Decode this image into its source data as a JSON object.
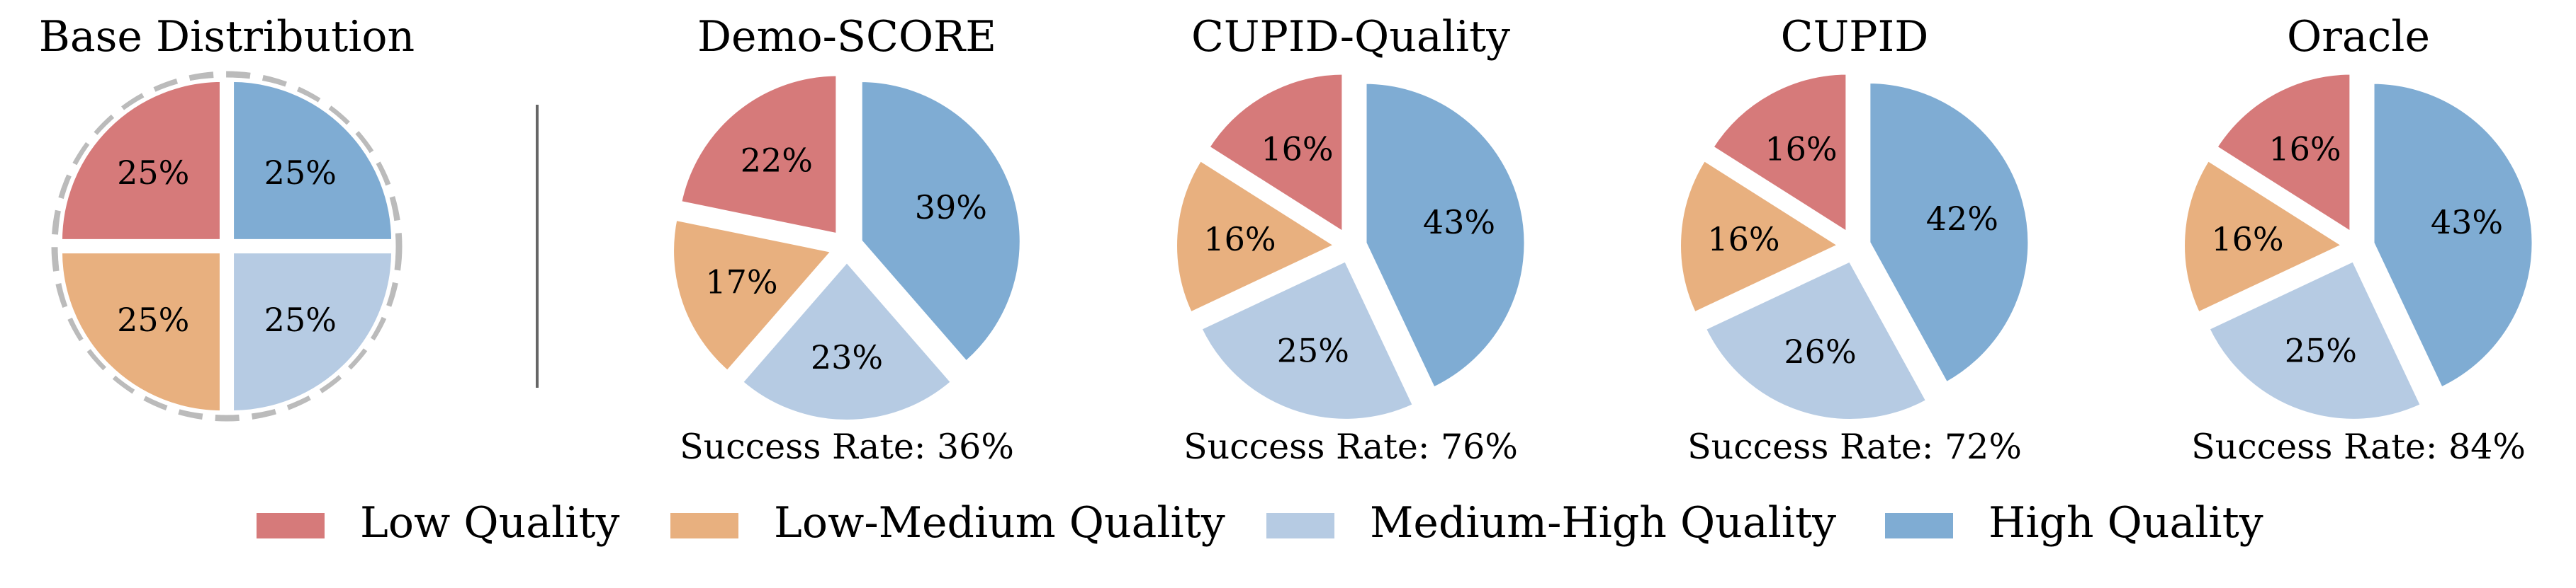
{
  "colors": {
    "low": "#d67a7a",
    "low_medium": "#e8b07f",
    "medium_high": "#b6cbe3",
    "high": "#7facd3",
    "ring": "#bbbbbb",
    "divider": "#666666"
  },
  "legend": [
    {
      "label": "Low Quality",
      "color_key": "low"
    },
    {
      "label": "Low-Medium Quality",
      "color_key": "low_medium"
    },
    {
      "label": "Medium-High Quality",
      "color_key": "medium_high"
    },
    {
      "label": "High Quality",
      "color_key": "high"
    }
  ],
  "chart_data": [
    {
      "type": "pie",
      "title": "Base Distribution",
      "subtitle": "",
      "slices": [
        {
          "label": "High Quality",
          "value": 25,
          "text": "25%"
        },
        {
          "label": "Medium-High Quality",
          "value": 25,
          "text": "25%"
        },
        {
          "label": "Low-Medium Quality",
          "value": 25,
          "text": "25%"
        },
        {
          "label": "Low Quality",
          "value": 25,
          "text": "25%"
        }
      ]
    },
    {
      "type": "pie",
      "title": "Demo-SCORE",
      "subtitle": "Success Rate: 36%",
      "slices": [
        {
          "label": "High Quality",
          "value": 39,
          "text": "39%"
        },
        {
          "label": "Medium-High Quality",
          "value": 23,
          "text": "23%"
        },
        {
          "label": "Low-Medium Quality",
          "value": 17,
          "text": "17%"
        },
        {
          "label": "Low Quality",
          "value": 22,
          "text": "22%"
        }
      ]
    },
    {
      "type": "pie",
      "title": "CUPID-Quality",
      "subtitle": "Success Rate: 76%",
      "slices": [
        {
          "label": "High Quality",
          "value": 43,
          "text": "43%"
        },
        {
          "label": "Medium-High Quality",
          "value": 25,
          "text": "25%"
        },
        {
          "label": "Low-Medium Quality",
          "value": 16,
          "text": "16%"
        },
        {
          "label": "Low Quality",
          "value": 16,
          "text": "16%"
        }
      ]
    },
    {
      "type": "pie",
      "title": "CUPID",
      "subtitle": "Success Rate: 72%",
      "slices": [
        {
          "label": "High Quality",
          "value": 42,
          "text": "42%"
        },
        {
          "label": "Medium-High Quality",
          "value": 26,
          "text": "26%"
        },
        {
          "label": "Low-Medium Quality",
          "value": 16,
          "text": "16%"
        },
        {
          "label": "Low Quality",
          "value": 16,
          "text": "16%"
        }
      ]
    },
    {
      "type": "pie",
      "title": "Oracle",
      "subtitle": "Success Rate: 84%",
      "slices": [
        {
          "label": "High Quality",
          "value": 43,
          "text": "43%"
        },
        {
          "label": "Medium-High Quality",
          "value": 25,
          "text": "25%"
        },
        {
          "label": "Low-Medium Quality",
          "value": 16,
          "text": "16%"
        },
        {
          "label": "Low Quality",
          "value": 16,
          "text": "16%"
        }
      ]
    }
  ]
}
